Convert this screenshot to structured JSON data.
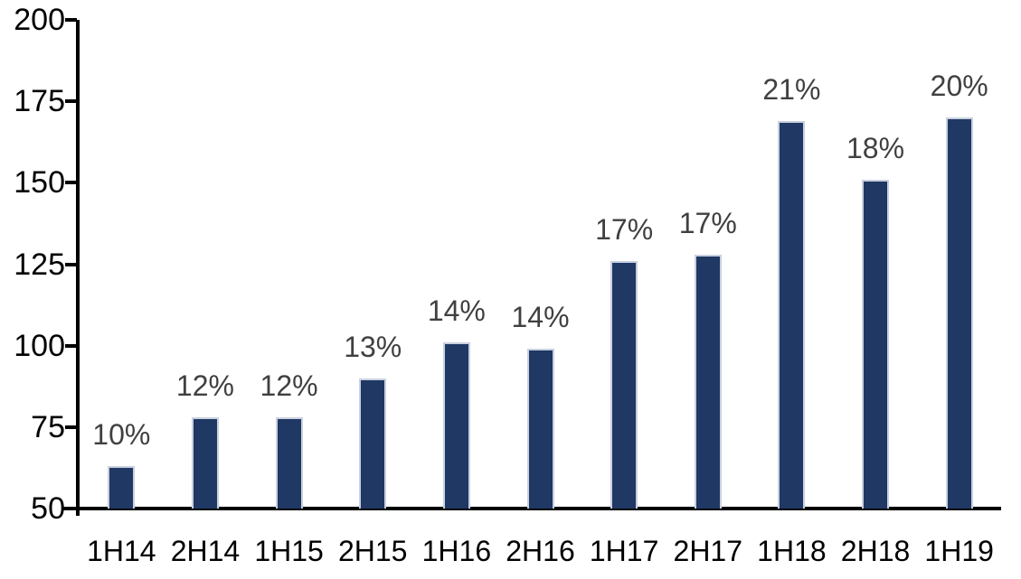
{
  "chart_data": {
    "type": "bar",
    "title": "",
    "xlabel": "",
    "ylabel": "",
    "categories": [
      "1H14",
      "2H14",
      "1H15",
      "2H15",
      "1H16",
      "2H16",
      "1H17",
      "2H17",
      "1H18",
      "2H18",
      "1H19"
    ],
    "series": [
      {
        "name": "value",
        "values": [
          63,
          78,
          78,
          90,
          101,
          99,
          126,
          128,
          169,
          151,
          170
        ]
      }
    ],
    "bar_labels": [
      "10%",
      "12%",
      "12%",
      "13%",
      "14%",
      "14%",
      "17%",
      "17%",
      "21%",
      "18%",
      "20%"
    ],
    "ylim": [
      50,
      200
    ],
    "yticks": [
      50,
      75,
      100,
      125,
      150,
      175,
      200
    ],
    "grid": false,
    "legend": null,
    "colors": {
      "bar": "#1f3864",
      "bar_border": "#c9d0df",
      "bar_label": "#404040",
      "axis": "#000000",
      "background": "#ffffff"
    }
  }
}
